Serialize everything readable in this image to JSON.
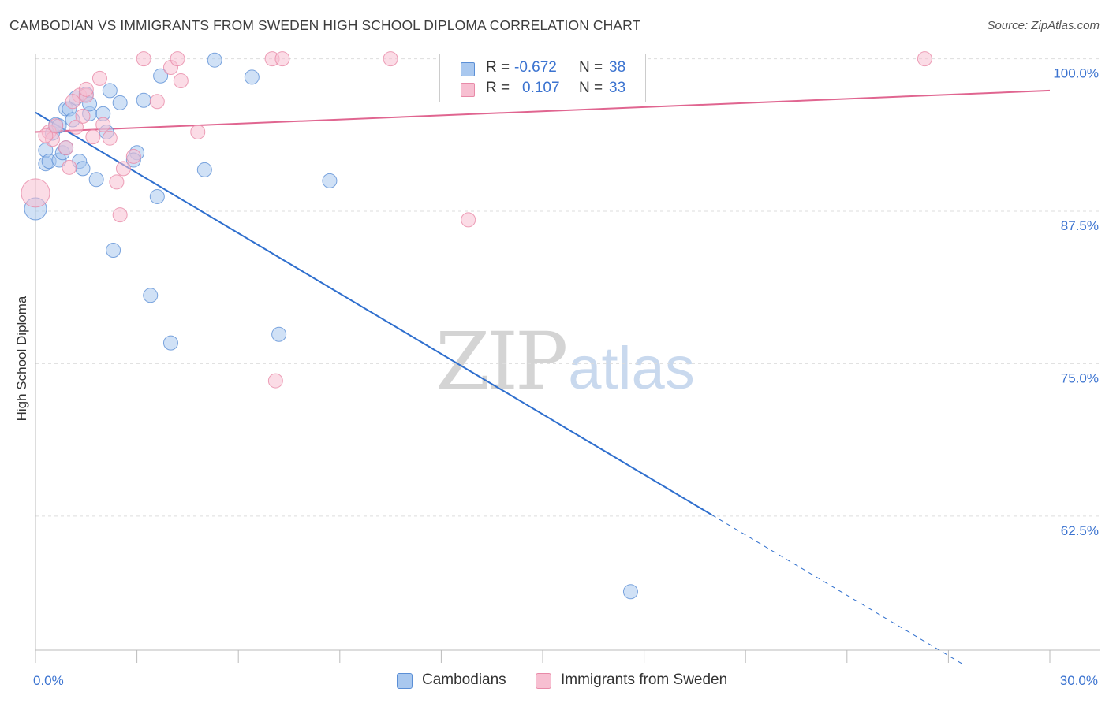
{
  "header": {
    "title": "CAMBODIAN VS IMMIGRANTS FROM SWEDEN HIGH SCHOOL DIPLOMA CORRELATION CHART",
    "source": "Source: ZipAtlas.com"
  },
  "watermark": {
    "zip": "ZIP",
    "atlas": "atlas"
  },
  "legend": {
    "r_label": "R =",
    "n_label": "N =",
    "series": [
      {
        "r": "-0.672",
        "n": "38"
      },
      {
        "r": "0.107",
        "n": "33"
      }
    ]
  },
  "bottom_legend": [
    "Cambodians",
    "Immigrants from Sweden"
  ],
  "colors": {
    "blue_fill": "#a9c8ef",
    "blue_stroke": "#5b8fd6",
    "blue_line": "#2f6fce",
    "pink_fill": "#f7bfd1",
    "pink_stroke": "#e88aa8",
    "pink_line": "#e06590",
    "axis_text": "#3b73d0",
    "grid": "#dddddd"
  },
  "chart_data": {
    "type": "scatter",
    "title": "CAMBODIAN VS IMMIGRANTS FROM SWEDEN HIGH SCHOOL DIPLOMA CORRELATION CHART",
    "xlabel": "",
    "ylabel": "High School Diploma",
    "xlim": [
      0,
      30
    ],
    "ylim": [
      51.5,
      100.3
    ],
    "x_tick_labels": [
      {
        "value": 0,
        "label": "0.0%"
      },
      {
        "value": 30,
        "label": "30.0%"
      }
    ],
    "y_tick_labels": [
      {
        "value": 100,
        "label": "100.0%"
      },
      {
        "value": 87.5,
        "label": "87.5%"
      },
      {
        "value": 75,
        "label": "75.0%"
      },
      {
        "value": 62.5,
        "label": "62.5%"
      }
    ],
    "series": [
      {
        "name": "Cambodians",
        "r": -0.672,
        "n": 38,
        "trend": {
          "x0": 0.0,
          "y0": 95.6,
          "x1": 20.0,
          "y1": 62.6,
          "dashed_to_x": 27.4,
          "dashed_to_y": 50.4
        },
        "points": [
          [
            0.0,
            87.7,
            14
          ],
          [
            0.3,
            92.5,
            9
          ],
          [
            0.3,
            91.4,
            9
          ],
          [
            0.4,
            91.6,
            9
          ],
          [
            0.5,
            93.9,
            9
          ],
          [
            0.6,
            94.6,
            9
          ],
          [
            0.7,
            91.7,
            9
          ],
          [
            0.8,
            92.3,
            9
          ],
          [
            0.9,
            92.7,
            9
          ],
          [
            0.9,
            95.9,
            9
          ],
          [
            1.0,
            95.9,
            9
          ],
          [
            1.1,
            95.0,
            9
          ],
          [
            1.2,
            96.8,
            9
          ],
          [
            1.3,
            91.6,
            9
          ],
          [
            1.4,
            91.0,
            9
          ],
          [
            1.5,
            97.1,
            9
          ],
          [
            1.6,
            95.5,
            9
          ],
          [
            1.8,
            90.1,
            9
          ],
          [
            2.0,
            95.5,
            9
          ],
          [
            2.1,
            94.0,
            9
          ],
          [
            2.2,
            97.4,
            9
          ],
          [
            2.5,
            96.4,
            9
          ],
          [
            3.0,
            92.3,
            9
          ],
          [
            3.2,
            96.6,
            9
          ],
          [
            3.7,
            98.6,
            9
          ],
          [
            5.3,
            99.9,
            9
          ],
          [
            6.4,
            98.5,
            9
          ],
          [
            3.6,
            88.7,
            9
          ],
          [
            2.3,
            84.3,
            9
          ],
          [
            3.4,
            80.6,
            9
          ],
          [
            4.0,
            76.7,
            9
          ],
          [
            7.2,
            77.4,
            9
          ],
          [
            8.7,
            90.0,
            9
          ],
          [
            17.6,
            56.3,
            9
          ],
          [
            5.0,
            90.9,
            9
          ],
          [
            2.9,
            91.7,
            9
          ],
          [
            1.6,
            96.3,
            9
          ],
          [
            0.7,
            94.5,
            9
          ]
        ]
      },
      {
        "name": "Immigrants from Sweden",
        "r": 0.107,
        "n": 33,
        "trend": {
          "x0": 0.0,
          "y0": 94.0,
          "x1": 30.0,
          "y1": 97.4
        },
        "points": [
          [
            0.0,
            89.0,
            18
          ],
          [
            0.4,
            94.0,
            9
          ],
          [
            0.5,
            93.4,
            9
          ],
          [
            0.6,
            94.5,
            9
          ],
          [
            0.9,
            92.7,
            9
          ],
          [
            1.0,
            91.1,
            9
          ],
          [
            1.2,
            94.4,
            9
          ],
          [
            1.3,
            97.0,
            9
          ],
          [
            1.4,
            95.3,
            9
          ],
          [
            1.5,
            97.0,
            9
          ],
          [
            1.5,
            97.5,
            9
          ],
          [
            1.7,
            93.6,
            9
          ],
          [
            1.9,
            98.4,
            9
          ],
          [
            2.0,
            94.6,
            9
          ],
          [
            2.2,
            93.5,
            9
          ],
          [
            2.4,
            89.9,
            9
          ],
          [
            2.5,
            87.2,
            9
          ],
          [
            2.6,
            91.0,
            9
          ],
          [
            2.9,
            92.0,
            9
          ],
          [
            3.2,
            100.0,
            9
          ],
          [
            3.6,
            96.5,
            9
          ],
          [
            4.0,
            99.3,
            9
          ],
          [
            4.2,
            100.0,
            9
          ],
          [
            4.3,
            98.2,
            9
          ],
          [
            4.8,
            94.0,
            9
          ],
          [
            7.0,
            100.0,
            9
          ],
          [
            7.3,
            100.0,
            9
          ],
          [
            10.5,
            100.0,
            9
          ],
          [
            7.1,
            73.6,
            9
          ],
          [
            12.8,
            86.8,
            9
          ],
          [
            26.3,
            100.0,
            9
          ],
          [
            1.1,
            96.5,
            9
          ],
          [
            0.3,
            93.7,
            9
          ]
        ]
      }
    ]
  }
}
